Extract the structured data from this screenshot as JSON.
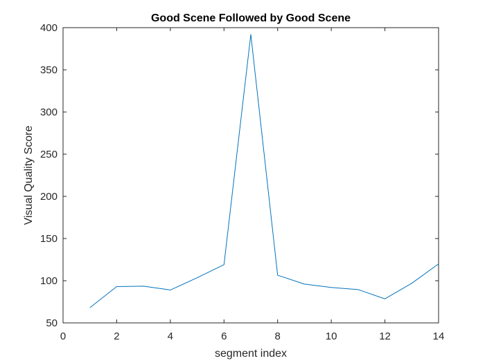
{
  "chart_data": {
    "type": "line",
    "title": "Good Scene Followed by Good Scene",
    "xlabel": "segment index",
    "ylabel": "Visual Quality Score",
    "xlim": [
      0,
      14
    ],
    "ylim": [
      50,
      400
    ],
    "xticks": [
      0,
      2,
      4,
      6,
      8,
      10,
      12,
      14
    ],
    "yticks": [
      50,
      100,
      150,
      200,
      250,
      300,
      350,
      400
    ],
    "grid": false,
    "series": [
      {
        "color": "#0072BD",
        "x": [
          1,
          2,
          3,
          4,
          5,
          6,
          7,
          8,
          9,
          10,
          11,
          12,
          13,
          14
        ],
        "y": [
          68,
          93,
          93.5,
          89,
          103.5,
          119,
          392,
          106.5,
          96,
          92,
          89.5,
          78.5,
          97,
          120
        ]
      }
    ]
  }
}
